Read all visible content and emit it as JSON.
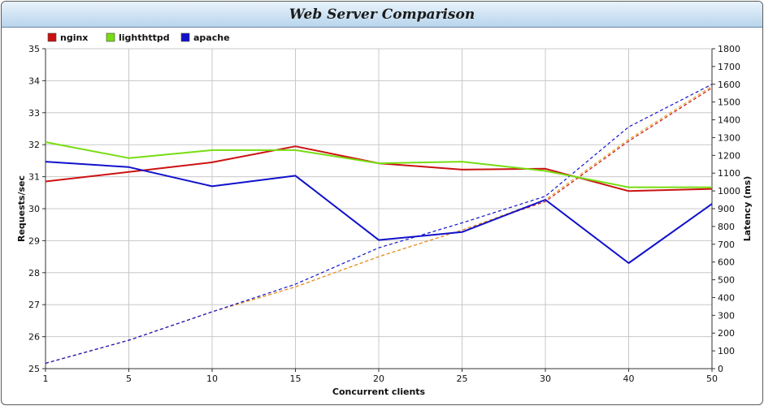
{
  "title": "Web Server Comparison",
  "chart_data": {
    "type": "line",
    "title": "Web Server Comparison",
    "xlabel": "Concurrent clients",
    "ylabel": "Requests/sec",
    "y2label": "Latency (ms)",
    "categories": [
      "1",
      "5",
      "10",
      "15",
      "20",
      "25",
      "30",
      "40",
      "50"
    ],
    "ylim": [
      25,
      35
    ],
    "y2lim": [
      0,
      1800
    ],
    "yticks": [
      25,
      26,
      27,
      28,
      29,
      30,
      31,
      32,
      33,
      34,
      35
    ],
    "y2ticks": [
      0,
      100,
      200,
      300,
      400,
      500,
      600,
      700,
      800,
      900,
      1000,
      1100,
      1200,
      1300,
      1400,
      1500,
      1600,
      1700,
      1800
    ],
    "grid": true,
    "legend_position": "top-left",
    "series": [
      {
        "name": "nginx",
        "color": "#cc1111",
        "axis": "left",
        "style": "solid",
        "values": [
          30.85,
          31.15,
          31.45,
          31.95,
          31.42,
          31.22,
          31.25,
          30.55,
          30.62
        ]
      },
      {
        "name": "lighthttpd",
        "color": "#77dd11",
        "axis": "left",
        "style": "solid",
        "values": [
          32.08,
          31.58,
          31.83,
          31.83,
          31.42,
          31.47,
          31.18,
          30.67,
          30.67
        ]
      },
      {
        "name": "apache",
        "color": "#1111cc",
        "axis": "left",
        "style": "solid",
        "values": [
          31.47,
          31.3,
          30.7,
          31.03,
          29.02,
          29.27,
          30.28,
          28.3,
          30.15
        ]
      },
      {
        "name": "nginx",
        "color": "#cc1111",
        "axis": "right",
        "style": "dashed",
        "legend": false,
        "values": [
          30,
          160,
          320,
          460,
          630,
          780,
          940,
          1280,
          1580
        ]
      },
      {
        "name": "lighthttpd",
        "color": "#e8a020",
        "axis": "right",
        "style": "dashed",
        "legend": false,
        "values": [
          30,
          160,
          320,
          460,
          630,
          780,
          950,
          1290,
          1590
        ]
      },
      {
        "name": "apache",
        "color": "#1111cc",
        "axis": "right",
        "style": "dashed",
        "legend": false,
        "values": [
          30,
          160,
          320,
          475,
          680,
          820,
          970,
          1360,
          1600
        ]
      }
    ]
  }
}
